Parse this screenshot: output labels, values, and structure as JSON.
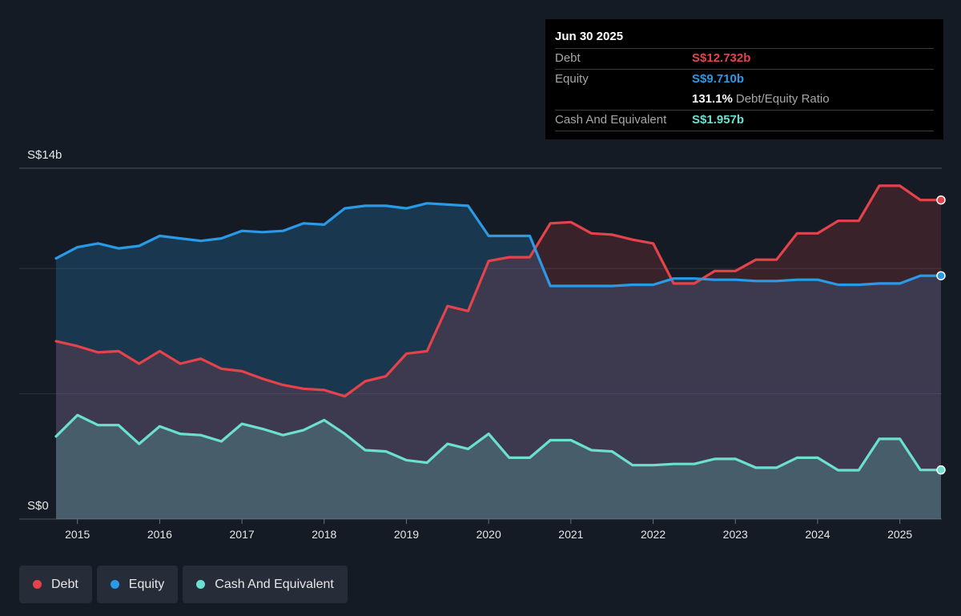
{
  "tooltip": {
    "date": "Jun 30 2025",
    "rows": [
      {
        "name": "Debt",
        "value": "S$12.732b",
        "color": "#e5434b"
      },
      {
        "name": "Equity",
        "value": "S$9.710b",
        "color": "#2b9ae6"
      }
    ],
    "ratio_value": "131.1%",
    "ratio_label": "Debt/Equity Ratio",
    "cash": {
      "name": "Cash And Equivalent",
      "value": "S$1.957b",
      "color": "#6ce0d0"
    }
  },
  "legend": [
    {
      "label": "Debt",
      "color": "#e5434b"
    },
    {
      "label": "Equity",
      "color": "#2b9ae6"
    },
    {
      "label": "Cash And Equivalent",
      "color": "#6ce0d0"
    }
  ],
  "chart_data": {
    "type": "area",
    "ylim": [
      0,
      14
    ],
    "y_ticks": [
      "S$14b",
      "S$0"
    ],
    "x_ticks": [
      "2015",
      "2016",
      "2017",
      "2018",
      "2019",
      "2020",
      "2021",
      "2022",
      "2023",
      "2024",
      "2025"
    ],
    "x_range": [
      2014.74,
      2025.5
    ],
    "grid": true,
    "series": [
      {
        "name": "Debt",
        "color": "#e5434b",
        "x": [
          2014.74,
          2015.0,
          2015.25,
          2015.5,
          2015.75,
          2016.0,
          2016.25,
          2016.5,
          2016.75,
          2017.0,
          2017.25,
          2017.5,
          2017.75,
          2018.0,
          2018.25,
          2018.5,
          2018.75,
          2019.0,
          2019.25,
          2019.5,
          2019.75,
          2020.0,
          2020.25,
          2020.5,
          2020.75,
          2021.0,
          2021.25,
          2021.5,
          2021.75,
          2022.0,
          2022.25,
          2022.5,
          2022.75,
          2023.0,
          2023.25,
          2023.5,
          2023.75,
          2024.0,
          2024.25,
          2024.5,
          2024.75,
          2025.0,
          2025.25,
          2025.5
        ],
        "values": [
          7.1,
          6.9,
          6.65,
          6.7,
          6.2,
          6.7,
          6.2,
          6.4,
          6.0,
          5.9,
          5.6,
          5.35,
          5.2,
          5.15,
          4.9,
          5.5,
          5.7,
          6.6,
          6.7,
          8.5,
          8.3,
          10.3,
          10.45,
          10.45,
          11.8,
          11.85,
          11.4,
          11.35,
          11.15,
          11.0,
          9.4,
          9.4,
          9.9,
          9.9,
          10.35,
          10.35,
          11.4,
          11.4,
          11.9,
          11.9,
          13.3,
          13.3,
          12.73,
          12.73
        ]
      },
      {
        "name": "Equity",
        "color": "#2b9ae6",
        "x": [
          2014.74,
          2015.0,
          2015.25,
          2015.5,
          2015.75,
          2016.0,
          2016.25,
          2016.5,
          2016.75,
          2017.0,
          2017.25,
          2017.5,
          2017.75,
          2018.0,
          2018.25,
          2018.5,
          2018.75,
          2019.0,
          2019.25,
          2019.5,
          2019.75,
          2020.0,
          2020.25,
          2020.5,
          2020.75,
          2021.0,
          2021.25,
          2021.5,
          2021.75,
          2022.0,
          2022.25,
          2022.5,
          2022.75,
          2023.0,
          2023.25,
          2023.5,
          2023.75,
          2024.0,
          2024.25,
          2024.5,
          2024.75,
          2025.0,
          2025.25,
          2025.5
        ],
        "values": [
          10.4,
          10.85,
          11.0,
          10.8,
          10.9,
          11.3,
          11.2,
          11.1,
          11.2,
          11.5,
          11.45,
          11.5,
          11.8,
          11.75,
          12.4,
          12.5,
          12.5,
          12.4,
          12.6,
          12.55,
          12.5,
          11.3,
          11.3,
          11.3,
          9.3,
          9.3,
          9.3,
          9.3,
          9.35,
          9.35,
          9.6,
          9.6,
          9.55,
          9.55,
          9.5,
          9.5,
          9.55,
          9.55,
          9.35,
          9.35,
          9.4,
          9.4,
          9.71,
          9.71
        ]
      },
      {
        "name": "Cash And Equivalent",
        "color": "#6ce0d0",
        "x": [
          2014.74,
          2015.0,
          2015.25,
          2015.5,
          2015.75,
          2016.0,
          2016.25,
          2016.5,
          2016.75,
          2017.0,
          2017.25,
          2017.5,
          2017.75,
          2018.0,
          2018.25,
          2018.5,
          2018.75,
          2019.0,
          2019.25,
          2019.5,
          2019.75,
          2020.0,
          2020.25,
          2020.5,
          2020.75,
          2021.0,
          2021.25,
          2021.5,
          2021.75,
          2022.0,
          2022.25,
          2022.5,
          2022.75,
          2023.0,
          2023.25,
          2023.5,
          2023.75,
          2024.0,
          2024.25,
          2024.5,
          2024.75,
          2025.0,
          2025.25,
          2025.5
        ],
        "values": [
          3.3,
          4.15,
          3.75,
          3.75,
          3.0,
          3.7,
          3.4,
          3.35,
          3.1,
          3.8,
          3.6,
          3.35,
          3.55,
          3.95,
          3.4,
          2.75,
          2.7,
          2.35,
          2.25,
          3.0,
          2.8,
          3.4,
          2.45,
          2.45,
          3.15,
          3.15,
          2.75,
          2.7,
          2.15,
          2.15,
          2.2,
          2.2,
          2.4,
          2.4,
          2.05,
          2.05,
          2.45,
          2.45,
          1.95,
          1.95,
          3.2,
          3.2,
          1.96,
          1.96
        ]
      }
    ]
  }
}
